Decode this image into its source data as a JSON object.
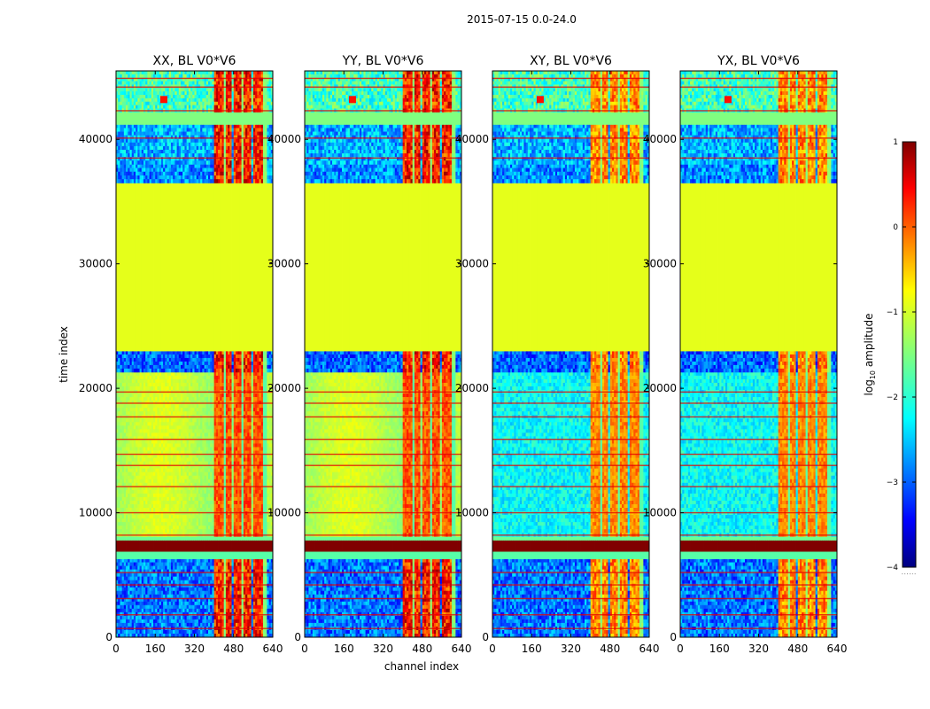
{
  "chart_data": {
    "type": "heatmap",
    "suptitle": "2015-07-15 0.0-24.0",
    "xlabel": "channel index",
    "ylabel": "time index",
    "xlim": [
      0,
      640
    ],
    "ylim": [
      0,
      45500
    ],
    "x_ticks": [
      "0",
      "160",
      "320",
      "480",
      "640"
    ],
    "x_tick_values": [
      0,
      160,
      320,
      480,
      640
    ],
    "y_ticks": [
      "0",
      "10000",
      "20000",
      "30000",
      "40000"
    ],
    "y_tick_values": [
      0,
      10000,
      20000,
      30000,
      40000
    ],
    "colormap": "jet",
    "panels": [
      {
        "title": "XX, BL V0*V6",
        "pol": "parallel"
      },
      {
        "title": "YY, BL V0*V6",
        "pol": "parallel"
      },
      {
        "title": "XY, BL V0*V6",
        "pol": "cross"
      },
      {
        "title": "YX, BL V0*V6",
        "pol": "cross"
      }
    ],
    "colorbar": {
      "label": "log10 amplitude",
      "range": [
        -4,
        1
      ],
      "ticks": [
        "−4",
        "−3",
        "−2",
        "−1",
        "0",
        "1"
      ],
      "tick_values": [
        -4,
        -3,
        -2,
        -1,
        0,
        1
      ]
    },
    "time_segments": [
      {
        "t0": 0,
        "t1": 6300,
        "kind": "noisy",
        "level": -2.8
      },
      {
        "t0": 6300,
        "t1": 6900,
        "kind": "flat",
        "level": -1.7
      },
      {
        "t0": 6900,
        "t1": 7800,
        "kind": "saturated",
        "level": 1.0
      },
      {
        "t0": 7800,
        "t1": 8100,
        "kind": "flat",
        "level": -1.6
      },
      {
        "t0": 8100,
        "t1": 21300,
        "kind": "smooth",
        "level": -1.3
      },
      {
        "t0": 21300,
        "t1": 23000,
        "kind": "noisy",
        "level": -2.9
      },
      {
        "t0": 23000,
        "t1": 36500,
        "kind": "flat",
        "level": -1.0
      },
      {
        "t0": 36500,
        "t1": 38000,
        "kind": "noisy",
        "level": -2.7
      },
      {
        "t0": 38000,
        "t1": 41200,
        "kind": "noisy",
        "level": -2.5
      },
      {
        "t0": 41200,
        "t1": 42200,
        "kind": "flat",
        "level": -1.5
      },
      {
        "t0": 42200,
        "t1": 45500,
        "kind": "noisy",
        "level": -1.8
      }
    ],
    "rfi_channel_bands": [
      [
        400,
        435
      ],
      [
        445,
        470
      ],
      [
        480,
        505
      ],
      [
        520,
        545
      ],
      [
        555,
        595
      ]
    ],
    "gap_channel_bands": [
      [
        435,
        445
      ],
      [
        505,
        520
      ],
      [
        595,
        610
      ]
    ]
  }
}
